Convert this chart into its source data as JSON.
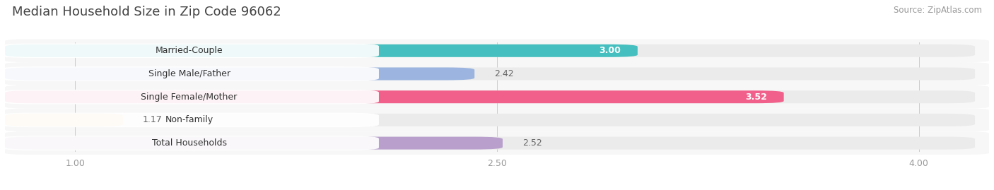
{
  "title": "Median Household Size in Zip Code 96062",
  "source": "Source: ZipAtlas.com",
  "categories": [
    "Married-Couple",
    "Single Male/Father",
    "Single Female/Mother",
    "Non-family",
    "Total Households"
  ],
  "values": [
    3.0,
    2.42,
    3.52,
    1.17,
    2.52
  ],
  "bar_colors": [
    "#45BFBF",
    "#9BB5E0",
    "#F0608A",
    "#F5C98A",
    "#B89FCC"
  ],
  "xlim_data": [
    0.75,
    4.25
  ],
  "xstart": 0.75,
  "xticks": [
    1.0,
    2.5,
    4.0
  ],
  "xtick_labels": [
    "1.00",
    "2.50",
    "4.00"
  ],
  "value_labels": [
    "3.00",
    "2.42",
    "3.52",
    "1.17",
    "2.52"
  ],
  "value_inside": [
    true,
    false,
    true,
    false,
    false
  ],
  "background_color": "#ffffff",
  "bar_bg_color": "#ebebeb",
  "row_bg_color": "#f7f7f7",
  "title_fontsize": 13,
  "label_fontsize": 9,
  "value_fontsize": 9,
  "source_fontsize": 8.5
}
